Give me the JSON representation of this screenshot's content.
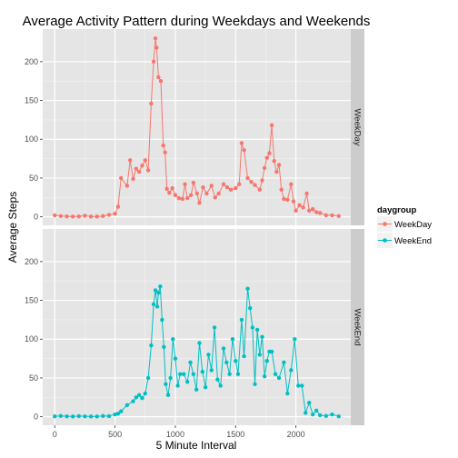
{
  "chart_data": {
    "type": "line",
    "title": "Average Activity Pattern during Weekdays and Weekends",
    "xlabel": "5 Minute Interval",
    "ylabel": "Average Steps",
    "xlim": [
      -100,
      2455
    ],
    "ylim": [
      -11,
      242
    ],
    "x_ticks": [
      0,
      500,
      1000,
      1500,
      2000
    ],
    "y_ticks": [
      0,
      50,
      100,
      150,
      200
    ],
    "grid": true,
    "legend_position": "right",
    "legend_title": "daygroup",
    "facet_labels": [
      "WeekDay",
      "WeekEnd"
    ],
    "colors": {
      "WeekDay": "#F8766D",
      "WeekEnd": "#00BFC4"
    },
    "series": [
      {
        "name": "WeekDay",
        "panel": "WeekDay",
        "points": [
          [
            0,
            2
          ],
          [
            50,
            1
          ],
          [
            100,
            0.5
          ],
          [
            150,
            0.3
          ],
          [
            200,
            0.5
          ],
          [
            250,
            1.5
          ],
          [
            300,
            0.4
          ],
          [
            350,
            0.3
          ],
          [
            400,
            1
          ],
          [
            450,
            2.5
          ],
          [
            500,
            4
          ],
          [
            525,
            13
          ],
          [
            550,
            50
          ],
          [
            600,
            40
          ],
          [
            625,
            73
          ],
          [
            650,
            49
          ],
          [
            675,
            62
          ],
          [
            700,
            58
          ],
          [
            725,
            66
          ],
          [
            750,
            73
          ],
          [
            775,
            60
          ],
          [
            800,
            146
          ],
          [
            820,
            200
          ],
          [
            835,
            230
          ],
          [
            845,
            218
          ],
          [
            860,
            180
          ],
          [
            880,
            175
          ],
          [
            900,
            92
          ],
          [
            915,
            83
          ],
          [
            930,
            36
          ],
          [
            950,
            31
          ],
          [
            975,
            37
          ],
          [
            1000,
            28
          ],
          [
            1030,
            24
          ],
          [
            1060,
            23
          ],
          [
            1080,
            42
          ],
          [
            1100,
            24
          ],
          [
            1130,
            28
          ],
          [
            1150,
            44
          ],
          [
            1180,
            30
          ],
          [
            1200,
            18
          ],
          [
            1230,
            38
          ],
          [
            1260,
            30
          ],
          [
            1300,
            40
          ],
          [
            1330,
            25
          ],
          [
            1360,
            30
          ],
          [
            1400,
            42
          ],
          [
            1430,
            38
          ],
          [
            1460,
            35
          ],
          [
            1500,
            37
          ],
          [
            1530,
            42
          ],
          [
            1550,
            95
          ],
          [
            1570,
            86
          ],
          [
            1600,
            50
          ],
          [
            1630,
            45
          ],
          [
            1660,
            41
          ],
          [
            1700,
            35
          ],
          [
            1720,
            47
          ],
          [
            1740,
            63
          ],
          [
            1760,
            76
          ],
          [
            1780,
            82
          ],
          [
            1800,
            118
          ],
          [
            1820,
            72
          ],
          [
            1840,
            58
          ],
          [
            1860,
            67
          ],
          [
            1880,
            35
          ],
          [
            1900,
            23
          ],
          [
            1930,
            22
          ],
          [
            1960,
            42
          ],
          [
            1980,
            20
          ],
          [
            2000,
            8
          ],
          [
            2030,
            15
          ],
          [
            2060,
            12
          ],
          [
            2090,
            30
          ],
          [
            2110,
            8
          ],
          [
            2140,
            10
          ],
          [
            2170,
            6
          ],
          [
            2200,
            5
          ],
          [
            2250,
            2
          ],
          [
            2300,
            2
          ],
          [
            2355,
            1
          ]
        ]
      },
      {
        "name": "WeekEnd",
        "panel": "WeekEnd",
        "points": [
          [
            0,
            0.5
          ],
          [
            50,
            1
          ],
          [
            100,
            0.5
          ],
          [
            150,
            0.3
          ],
          [
            200,
            0.8
          ],
          [
            250,
            0.5
          ],
          [
            300,
            0.3
          ],
          [
            350,
            0.4
          ],
          [
            400,
            1
          ],
          [
            450,
            0.8
          ],
          [
            500,
            3
          ],
          [
            525,
            4
          ],
          [
            550,
            7
          ],
          [
            600,
            15
          ],
          [
            650,
            20
          ],
          [
            675,
            25
          ],
          [
            700,
            28
          ],
          [
            725,
            24
          ],
          [
            750,
            30
          ],
          [
            775,
            50
          ],
          [
            800,
            92
          ],
          [
            820,
            145
          ],
          [
            835,
            163
          ],
          [
            850,
            142
          ],
          [
            860,
            160
          ],
          [
            875,
            168
          ],
          [
            890,
            125
          ],
          [
            905,
            90
          ],
          [
            920,
            42
          ],
          [
            940,
            28
          ],
          [
            960,
            50
          ],
          [
            980,
            100
          ],
          [
            1000,
            75
          ],
          [
            1020,
            40
          ],
          [
            1040,
            55
          ],
          [
            1070,
            55
          ],
          [
            1100,
            45
          ],
          [
            1125,
            70
          ],
          [
            1150,
            55
          ],
          [
            1175,
            35
          ],
          [
            1200,
            95
          ],
          [
            1225,
            58
          ],
          [
            1250,
            38
          ],
          [
            1275,
            80
          ],
          [
            1300,
            60
          ],
          [
            1325,
            115
          ],
          [
            1350,
            48
          ],
          [
            1375,
            40
          ],
          [
            1400,
            88
          ],
          [
            1425,
            70
          ],
          [
            1450,
            55
          ],
          [
            1475,
            100
          ],
          [
            1500,
            72
          ],
          [
            1520,
            55
          ],
          [
            1550,
            125
          ],
          [
            1570,
            78
          ],
          [
            1600,
            165
          ],
          [
            1620,
            140
          ],
          [
            1640,
            115
          ],
          [
            1660,
            42
          ],
          [
            1680,
            112
          ],
          [
            1700,
            80
          ],
          [
            1720,
            103
          ],
          [
            1740,
            52
          ],
          [
            1760,
            72
          ],
          [
            1780,
            84
          ],
          [
            1800,
            84
          ],
          [
            1830,
            55
          ],
          [
            1860,
            50
          ],
          [
            1900,
            70
          ],
          [
            1930,
            30
          ],
          [
            1960,
            60
          ],
          [
            1990,
            100
          ],
          [
            2020,
            40
          ],
          [
            2050,
            40
          ],
          [
            2080,
            5
          ],
          [
            2110,
            18
          ],
          [
            2140,
            3
          ],
          [
            2170,
            8
          ],
          [
            2200,
            2
          ],
          [
            2250,
            1
          ],
          [
            2300,
            3
          ],
          [
            2355,
            0.5
          ]
        ]
      }
    ]
  }
}
